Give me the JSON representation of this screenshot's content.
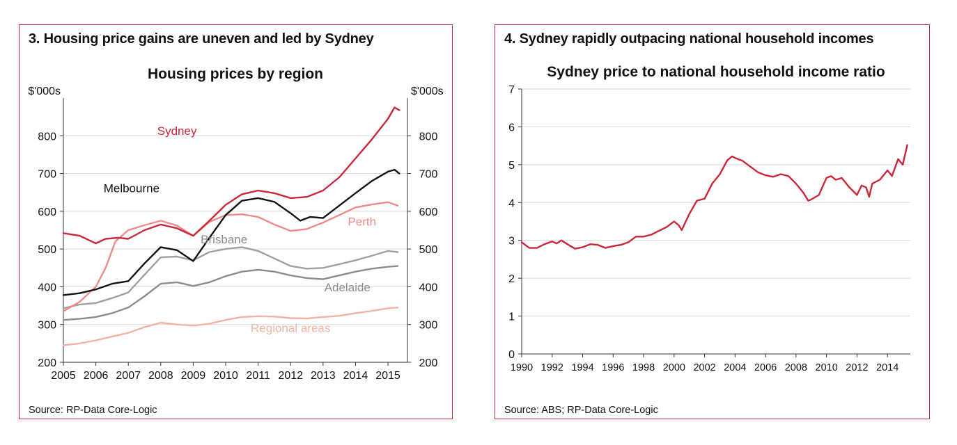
{
  "chart_data": [
    {
      "type": "line",
      "heading": "3. Housing price gains are uneven and led by Sydney",
      "title": "Housing prices by region",
      "unit_left": "$'000s",
      "unit_right": "$'000s",
      "source": "Source: RP-Data Core-Logic",
      "xlim": [
        2005,
        2015.6
      ],
      "ylim": [
        200,
        900
      ],
      "x_ticks": [
        2005,
        2006,
        2007,
        2008,
        2009,
        2010,
        2011,
        2012,
        2013,
        2014,
        2015
      ],
      "x_tick_labels": [
        "2005",
        "2006",
        "2007",
        "2008",
        "2009",
        "2010",
        "2011",
        "2012",
        "2013",
        "2014",
        "2015"
      ],
      "y_ticks": [
        200,
        300,
        400,
        500,
        600,
        700,
        800
      ],
      "y_tick_labels": [
        "200",
        "300",
        "400",
        "500",
        "600",
        "700",
        "800"
      ],
      "grid": true,
      "series": [
        {
          "name": "Regional areas",
          "color": "#f2b3a2",
          "points": [
            [
              2005.0,
              245
            ],
            [
              2005.5,
              250
            ],
            [
              2006.0,
              258
            ],
            [
              2006.5,
              268
            ],
            [
              2007.0,
              278
            ],
            [
              2007.5,
              293
            ],
            [
              2008.0,
              305
            ],
            [
              2008.5,
              300
            ],
            [
              2009.0,
              297
            ],
            [
              2009.5,
              302
            ],
            [
              2010.0,
              312
            ],
            [
              2010.5,
              320
            ],
            [
              2011.0,
              322
            ],
            [
              2011.5,
              321
            ],
            [
              2012.0,
              317
            ],
            [
              2012.5,
              316
            ],
            [
              2013.0,
              320
            ],
            [
              2013.5,
              323
            ],
            [
              2014.0,
              330
            ],
            [
              2014.5,
              336
            ],
            [
              2015.0,
              343
            ],
            [
              2015.3,
              345
            ]
          ]
        },
        {
          "name": "Adelaide",
          "color": "#8c8c8c",
          "points": [
            [
              2005.0,
              312
            ],
            [
              2005.5,
              315
            ],
            [
              2006.0,
              320
            ],
            [
              2006.5,
              330
            ],
            [
              2007.0,
              345
            ],
            [
              2007.5,
              375
            ],
            [
              2008.0,
              408
            ],
            [
              2008.5,
              412
            ],
            [
              2009.0,
              402
            ],
            [
              2009.5,
              412
            ],
            [
              2010.0,
              428
            ],
            [
              2010.5,
              440
            ],
            [
              2011.0,
              445
            ],
            [
              2011.5,
              440
            ],
            [
              2012.0,
              430
            ],
            [
              2012.5,
              423
            ],
            [
              2013.0,
              420
            ],
            [
              2013.5,
              430
            ],
            [
              2014.0,
              440
            ],
            [
              2014.5,
              448
            ],
            [
              2015.0,
              453
            ],
            [
              2015.3,
              455
            ]
          ]
        },
        {
          "name": "Brisbane",
          "color": "#a0a0a0",
          "points": [
            [
              2005.0,
              343
            ],
            [
              2005.5,
              353
            ],
            [
              2006.0,
              357
            ],
            [
              2006.5,
              370
            ],
            [
              2007.0,
              385
            ],
            [
              2007.5,
              432
            ],
            [
              2008.0,
              478
            ],
            [
              2008.5,
              480
            ],
            [
              2009.0,
              470
            ],
            [
              2009.5,
              492
            ],
            [
              2010.0,
              500
            ],
            [
              2010.5,
              505
            ],
            [
              2011.0,
              495
            ],
            [
              2011.5,
              475
            ],
            [
              2012.0,
              455
            ],
            [
              2012.5,
              448
            ],
            [
              2013.0,
              450
            ],
            [
              2013.5,
              460
            ],
            [
              2014.0,
              470
            ],
            [
              2014.5,
              482
            ],
            [
              2015.0,
              495
            ],
            [
              2015.3,
              492
            ]
          ]
        },
        {
          "name": "Perth",
          "color": "#ef8a8a",
          "points": [
            [
              2005.0,
              335
            ],
            [
              2005.5,
              360
            ],
            [
              2006.0,
              400
            ],
            [
              2006.3,
              450
            ],
            [
              2006.6,
              520
            ],
            [
              2007.0,
              550
            ],
            [
              2007.5,
              563
            ],
            [
              2008.0,
              575
            ],
            [
              2008.5,
              562
            ],
            [
              2009.0,
              535
            ],
            [
              2009.5,
              572
            ],
            [
              2010.0,
              590
            ],
            [
              2010.5,
              592
            ],
            [
              2011.0,
              585
            ],
            [
              2011.5,
              565
            ],
            [
              2012.0,
              548
            ],
            [
              2012.5,
              553
            ],
            [
              2013.0,
              570
            ],
            [
              2013.5,
              590
            ],
            [
              2014.0,
              610
            ],
            [
              2014.5,
              618
            ],
            [
              2015.0,
              624
            ],
            [
              2015.3,
              615
            ]
          ]
        },
        {
          "name": "Melbourne",
          "color": "#111111",
          "points": [
            [
              2005.0,
              378
            ],
            [
              2005.5,
              383
            ],
            [
              2006.0,
              393
            ],
            [
              2006.5,
              408
            ],
            [
              2007.0,
              415
            ],
            [
              2007.5,
              462
            ],
            [
              2008.0,
              505
            ],
            [
              2008.5,
              497
            ],
            [
              2009.0,
              468
            ],
            [
              2009.5,
              530
            ],
            [
              2010.0,
              590
            ],
            [
              2010.5,
              628
            ],
            [
              2011.0,
              635
            ],
            [
              2011.5,
              625
            ],
            [
              2012.0,
              595
            ],
            [
              2012.3,
              575
            ],
            [
              2012.6,
              585
            ],
            [
              2013.0,
              582
            ],
            [
              2013.5,
              615
            ],
            [
              2014.0,
              648
            ],
            [
              2014.5,
              680
            ],
            [
              2015.0,
              705
            ],
            [
              2015.2,
              710
            ],
            [
              2015.35,
              700
            ]
          ]
        },
        {
          "name": "Sydney",
          "color": "#c8283a",
          "points": [
            [
              2005.0,
              542
            ],
            [
              2005.5,
              535
            ],
            [
              2006.0,
              515
            ],
            [
              2006.3,
              527
            ],
            [
              2006.7,
              530
            ],
            [
              2007.0,
              527
            ],
            [
              2007.5,
              550
            ],
            [
              2008.0,
              565
            ],
            [
              2008.5,
              555
            ],
            [
              2009.0,
              535
            ],
            [
              2009.5,
              575
            ],
            [
              2010.0,
              617
            ],
            [
              2010.5,
              645
            ],
            [
              2011.0,
              655
            ],
            [
              2011.5,
              648
            ],
            [
              2012.0,
              635
            ],
            [
              2012.5,
              638
            ],
            [
              2013.0,
              655
            ],
            [
              2013.5,
              690
            ],
            [
              2014.0,
              740
            ],
            [
              2014.5,
              790
            ],
            [
              2015.0,
              845
            ],
            [
              2015.2,
              875
            ],
            [
              2015.35,
              868
            ]
          ]
        }
      ],
      "annotations": [
        {
          "text": "Sydney",
          "x": 2008.5,
          "y": 802,
          "color": "#c8283a"
        },
        {
          "text": "Melbourne",
          "x": 2007.1,
          "y": 650,
          "color": "#111111"
        },
        {
          "text": "Perth",
          "x": 2014.2,
          "y": 562,
          "color": "#ef8a8a"
        },
        {
          "text": "Brisbane",
          "x": 2009.95,
          "y": 515,
          "color": "#8c8c8c"
        },
        {
          "text": "Adelaide",
          "x": 2013.75,
          "y": 388,
          "color": "#8c8c8c"
        },
        {
          "text": "Regional areas",
          "x": 2012.0,
          "y": 280,
          "color": "#f2b3a2"
        }
      ]
    },
    {
      "type": "line",
      "heading": "4. Sydney rapidly outpacing national household incomes",
      "title": "Sydney price to national household income ratio",
      "source": "Source: ABS;  RP-Data Core-Logic",
      "xlim": [
        1990,
        2015.5
      ],
      "ylim": [
        0,
        7
      ],
      "x_ticks": [
        1990,
        1992,
        1994,
        1996,
        1998,
        2000,
        2002,
        2004,
        2006,
        2008,
        2010,
        2012,
        2014
      ],
      "x_tick_labels": [
        "1990",
        "1992",
        "1994",
        "1996",
        "1998",
        "2000",
        "2002",
        "2004",
        "2006",
        "2008",
        "2010",
        "2012",
        "2014"
      ],
      "y_ticks": [
        0,
        1,
        2,
        3,
        4,
        5,
        6,
        7
      ],
      "y_tick_labels": [
        "0",
        "1",
        "2",
        "3",
        "4",
        "5",
        "6",
        "7"
      ],
      "grid": true,
      "series": [
        {
          "name": "",
          "color": "#c8283a",
          "points": [
            [
              1990.0,
              2.95
            ],
            [
              1990.5,
              2.8
            ],
            [
              1991.0,
              2.8
            ],
            [
              1991.5,
              2.9
            ],
            [
              1992.0,
              2.97
            ],
            [
              1992.3,
              2.92
            ],
            [
              1992.6,
              3.0
            ],
            [
              1993.0,
              2.9
            ],
            [
              1993.5,
              2.78
            ],
            [
              1994.0,
              2.82
            ],
            [
              1994.5,
              2.9
            ],
            [
              1995.0,
              2.88
            ],
            [
              1995.5,
              2.8
            ],
            [
              1996.0,
              2.85
            ],
            [
              1996.5,
              2.88
            ],
            [
              1997.0,
              2.95
            ],
            [
              1997.5,
              3.1
            ],
            [
              1998.0,
              3.1
            ],
            [
              1998.5,
              3.15
            ],
            [
              1999.0,
              3.25
            ],
            [
              1999.5,
              3.35
            ],
            [
              2000.0,
              3.5
            ],
            [
              2000.3,
              3.4
            ],
            [
              2000.5,
              3.27
            ],
            [
              2001.0,
              3.7
            ],
            [
              2001.5,
              4.05
            ],
            [
              2002.0,
              4.1
            ],
            [
              2002.5,
              4.5
            ],
            [
              2003.0,
              4.75
            ],
            [
              2003.5,
              5.12
            ],
            [
              2003.8,
              5.22
            ],
            [
              2004.0,
              5.18
            ],
            [
              2004.5,
              5.1
            ],
            [
              2005.0,
              4.95
            ],
            [
              2005.5,
              4.8
            ],
            [
              2006.0,
              4.72
            ],
            [
              2006.5,
              4.68
            ],
            [
              2007.0,
              4.75
            ],
            [
              2007.5,
              4.7
            ],
            [
              2008.0,
              4.5
            ],
            [
              2008.5,
              4.25
            ],
            [
              2008.8,
              4.05
            ],
            [
              2009.0,
              4.08
            ],
            [
              2009.5,
              4.2
            ],
            [
              2010.0,
              4.65
            ],
            [
              2010.3,
              4.7
            ],
            [
              2010.6,
              4.6
            ],
            [
              2011.0,
              4.65
            ],
            [
              2011.5,
              4.4
            ],
            [
              2012.0,
              4.2
            ],
            [
              2012.3,
              4.45
            ],
            [
              2012.6,
              4.4
            ],
            [
              2012.8,
              4.15
            ],
            [
              2013.0,
              4.5
            ],
            [
              2013.5,
              4.6
            ],
            [
              2014.0,
              4.85
            ],
            [
              2014.3,
              4.7
            ],
            [
              2014.7,
              5.15
            ],
            [
              2015.0,
              5.0
            ],
            [
              2015.3,
              5.52
            ]
          ]
        }
      ],
      "annotations": []
    }
  ]
}
